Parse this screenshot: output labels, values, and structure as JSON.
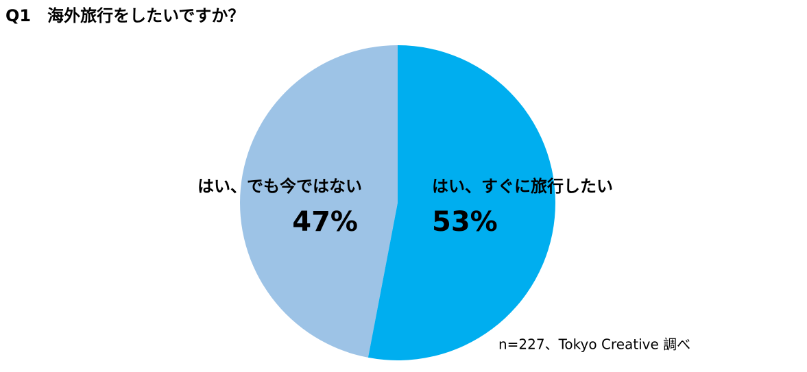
{
  "chart_data": {
    "type": "pie",
    "title": "Q1　海外旅行をしたいですか？",
    "categories": [
      "はい、すぐに旅行したい",
      "はい、でも今ではない"
    ],
    "values": [
      53,
      47
    ],
    "value_labels": [
      "53%",
      "47%"
    ],
    "colors": [
      "#00aeef",
      "#9dc3e6"
    ],
    "note": "n=227、Tokyo Creative 調べ"
  }
}
